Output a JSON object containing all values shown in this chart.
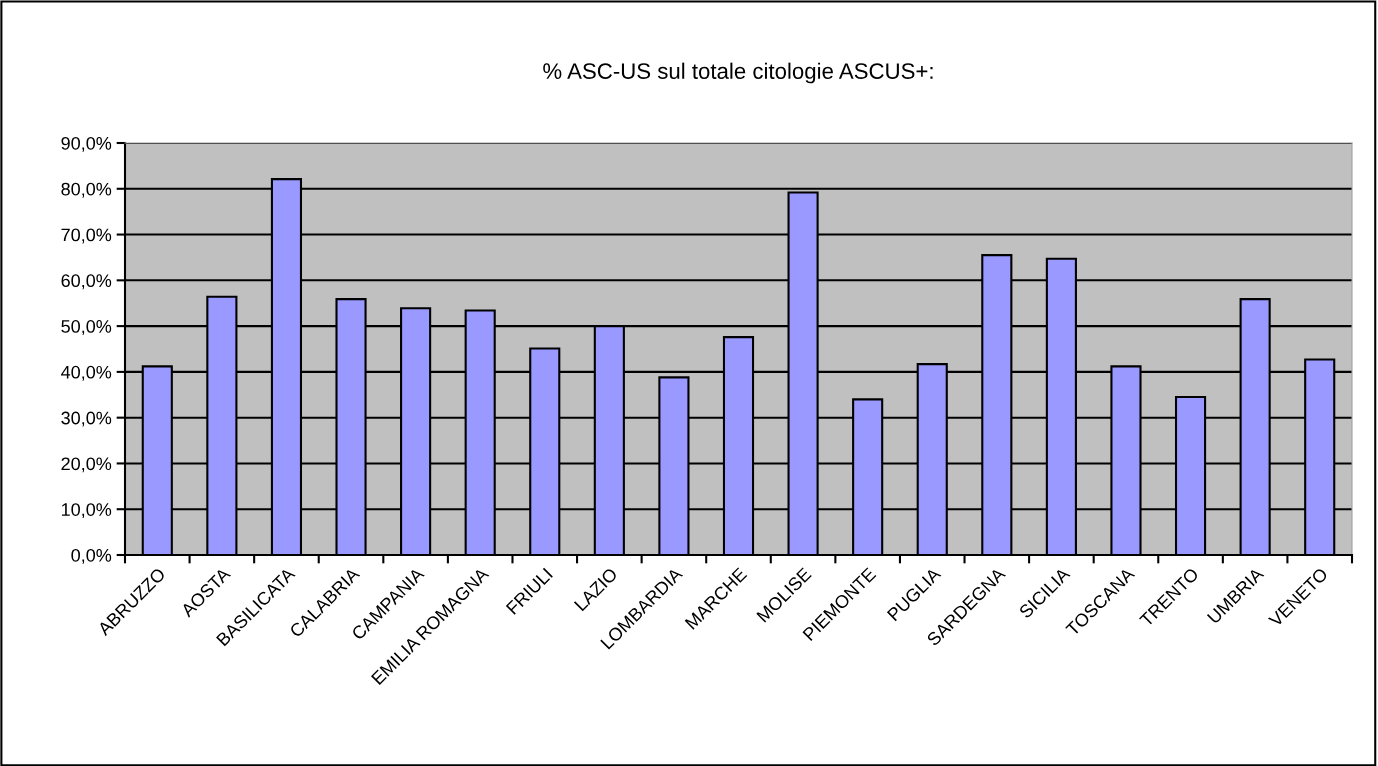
{
  "chart_data": {
    "type": "bar",
    "title": "% ASC-US sul totale citologie ASCUS+:",
    "categories": [
      "ABRUZZO",
      "AOSTA",
      "BASILICATA",
      "CALABRIA",
      "CAMPANIA",
      "EMILIA ROMAGNA",
      "FRIULI",
      "LAZIO",
      "LOMBARDIA",
      "MARCHE",
      "MOLISE",
      "PIEMONTE",
      "PUGLIA",
      "SARDEGNA",
      "SICILIA",
      "TOSCANA",
      "TRENTO",
      "UMBRIA",
      "VENETO"
    ],
    "values": [
      41.2,
      56.4,
      82.1,
      55.9,
      53.9,
      53.4,
      45.1,
      50.0,
      38.8,
      47.6,
      79.2,
      34.0,
      41.7,
      65.5,
      64.7,
      41.2,
      34.5,
      55.9,
      42.7
    ],
    "color": "#9999ff",
    "ylim": [
      0,
      90
    ],
    "yticks": [
      {
        "value": 0,
        "label": "0,0%"
      },
      {
        "value": 10,
        "label": "10,0%"
      },
      {
        "value": 20,
        "label": "20,0%"
      },
      {
        "value": 30,
        "label": "30,0%"
      },
      {
        "value": 40,
        "label": "40,0%"
      },
      {
        "value": 50,
        "label": "50,0%"
      },
      {
        "value": 60,
        "label": "60,0%"
      },
      {
        "value": 70,
        "label": "70,0%"
      },
      {
        "value": 80,
        "label": "80,0%"
      },
      {
        "value": 90,
        "label": "90,0%"
      }
    ],
    "grid": "y",
    "legend": false
  }
}
